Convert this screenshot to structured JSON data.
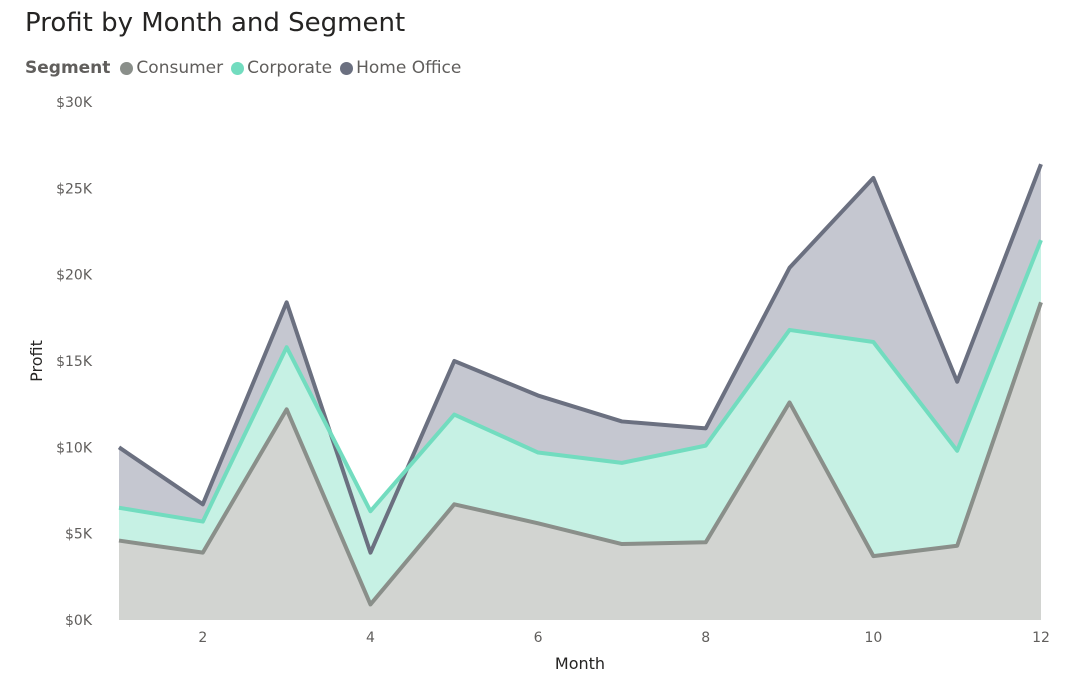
{
  "chart_data": {
    "type": "area",
    "title": "Profit by Month and Segment",
    "legend_title": "Segment",
    "legend_position": "top-left",
    "xlabel": "Month",
    "ylabel": "Profit",
    "x": [
      1,
      2,
      3,
      4,
      5,
      6,
      7,
      8,
      9,
      10,
      11,
      12
    ],
    "x_ticks": [
      "2",
      "4",
      "6",
      "8",
      "10",
      "12"
    ],
    "y_ticks": [
      "$0K",
      "$5K",
      "$10K",
      "$15K",
      "$20K",
      "$25K",
      "$30K"
    ],
    "ylim": [
      0,
      30000
    ],
    "stacked": true,
    "series": [
      {
        "name": "Consumer",
        "color": "#8a8f8a",
        "fill": "#d2d4d1",
        "values": [
          4600,
          3900,
          12200,
          900,
          6700,
          5600,
          4400,
          4500,
          12600,
          3700,
          4300,
          18400
        ]
      },
      {
        "name": "Corporate",
        "color": "#72dcbf",
        "fill": "#c6f1e4",
        "values": [
          1900,
          1800,
          3600,
          5400,
          5200,
          4100,
          4700,
          5600,
          4200,
          12400,
          5500,
          3600
        ]
      },
      {
        "name": "Home Office",
        "color": "#6b7080",
        "fill": "#c5c7d0",
        "values": [
          3500,
          1000,
          2600,
          -2400,
          3100,
          3300,
          2400,
          1000,
          3600,
          9500,
          4000,
          4400
        ]
      }
    ]
  }
}
